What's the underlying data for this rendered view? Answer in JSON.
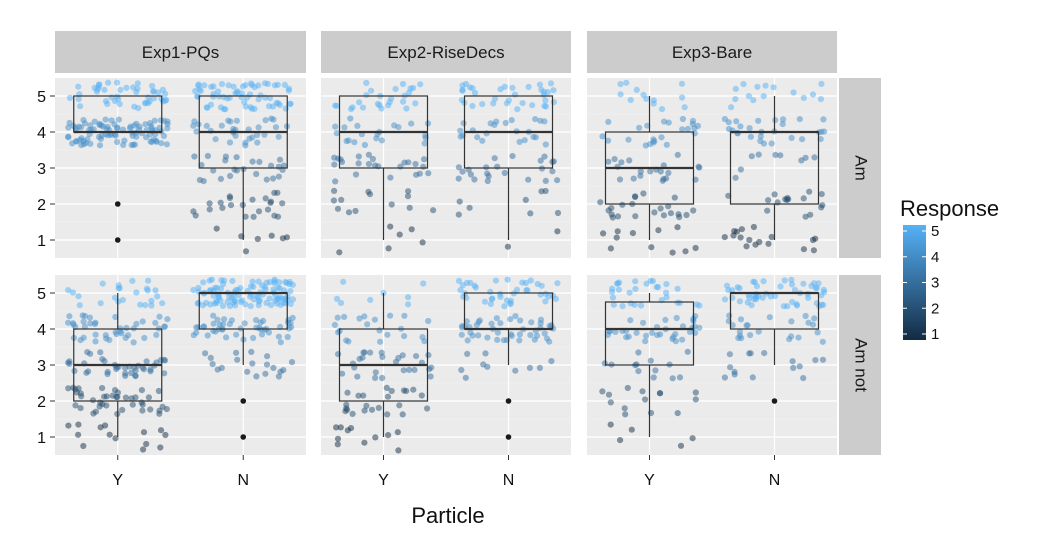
{
  "chart_data": {
    "type": "scatter",
    "subtype": "faceted boxplot with jittered points",
    "xlabel": "Particle",
    "ylabel": "",
    "x_categories": [
      "Y",
      "N"
    ],
    "ylim": [
      0.5,
      5.5
    ],
    "y_ticks": [
      1,
      2,
      3,
      4,
      5
    ],
    "col_facets": [
      "Exp1-PQs",
      "Exp2-RiseDecs",
      "Exp3-Bare"
    ],
    "row_facets": [
      "Am",
      "Am not"
    ],
    "grid": true,
    "legend": {
      "title": "Response",
      "position": "right",
      "range": [
        1,
        5
      ],
      "ticks": [
        "1",
        "2",
        "3",
        "4",
        "5"
      ],
      "low_color": "#132B43",
      "high_color": "#56B1F7"
    },
    "colors": {
      "panel_bg": "#ebebeb",
      "strip_bg": "#cccccc",
      "gridline": "#ffffff",
      "box_line": "#333333"
    },
    "boxes": [
      {
        "col": "Exp1-PQs",
        "row": "Am",
        "x": "Y",
        "whisker_low": 4,
        "q1": 4,
        "median": 4,
        "q3": 5,
        "whisker_high": 5,
        "outliers": [
          1,
          2
        ],
        "n": 140
      },
      {
        "col": "Exp1-PQs",
        "row": "Am",
        "x": "N",
        "whisker_low": 1,
        "q1": 3,
        "median": 4,
        "q3": 5,
        "whisker_high": 5,
        "outliers": [],
        "n": 150
      },
      {
        "col": "Exp2-RiseDecs",
        "row": "Am",
        "x": "Y",
        "whisker_low": 1,
        "q1": 3,
        "median": 4,
        "q3": 5,
        "whisker_high": 5,
        "outliers": [],
        "n": 90
      },
      {
        "col": "Exp2-RiseDecs",
        "row": "Am",
        "x": "N",
        "whisker_low": 1,
        "q1": 3,
        "median": 4,
        "q3": 5,
        "whisker_high": 5,
        "outliers": [],
        "n": 90
      },
      {
        "col": "Exp3-Bare",
        "row": "Am",
        "x": "Y",
        "whisker_low": 1,
        "q1": 2,
        "median": 3,
        "q3": 4,
        "whisker_high": 5,
        "outliers": [],
        "n": 90
      },
      {
        "col": "Exp3-Bare",
        "row": "Am",
        "x": "N",
        "whisker_low": 1,
        "q1": 2,
        "median": 4,
        "q3": 4,
        "whisker_high": 5,
        "outliers": [],
        "n": 85
      },
      {
        "col": "Exp1-PQs",
        "row": "Am not",
        "x": "Y",
        "whisker_low": 1,
        "q1": 2,
        "median": 3,
        "q3": 4,
        "whisker_high": 5,
        "outliers": [],
        "n": 160
      },
      {
        "col": "Exp1-PQs",
        "row": "Am not",
        "x": "N",
        "whisker_low": 3,
        "q1": 4,
        "median": 5,
        "q3": 5,
        "whisker_high": 5,
        "outliers": [
          1,
          2
        ],
        "n": 170
      },
      {
        "col": "Exp2-RiseDecs",
        "row": "Am not",
        "x": "Y",
        "whisker_low": 1,
        "q1": 2,
        "median": 3,
        "q3": 4,
        "whisker_high": 5,
        "outliers": [],
        "n": 90
      },
      {
        "col": "Exp2-RiseDecs",
        "row": "Am not",
        "x": "N",
        "whisker_low": 3,
        "q1": 4,
        "median": 4,
        "q3": 5,
        "whisker_high": 5,
        "outliers": [
          1,
          2
        ],
        "n": 95
      },
      {
        "col": "Exp3-Bare",
        "row": "Am not",
        "x": "Y",
        "whisker_low": 1,
        "q1": 3,
        "median": 4,
        "q3": 4.75,
        "whisker_high": 5,
        "outliers": [],
        "n": 95
      },
      {
        "col": "Exp3-Bare",
        "row": "Am not",
        "x": "N",
        "whisker_low": 3,
        "q1": 4,
        "median": 5,
        "q3": 5,
        "whisker_high": 5,
        "outliers": [
          2
        ],
        "n": 90
      }
    ]
  }
}
